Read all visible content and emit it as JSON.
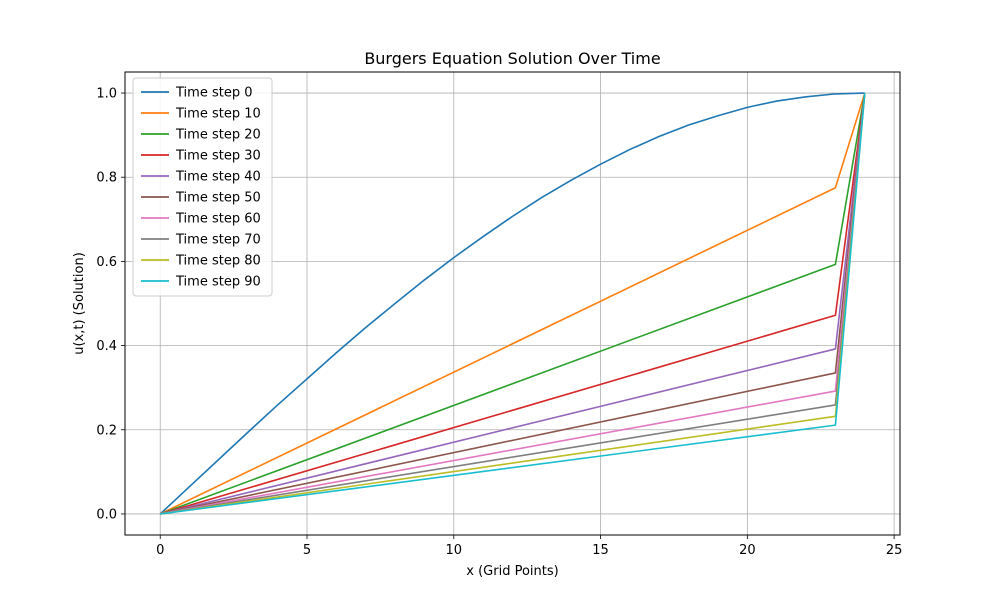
{
  "chart_data": {
    "type": "line",
    "title": "Burgers Equation Solution Over Time",
    "xlabel": "x (Grid Points)",
    "ylabel": "u(x,t) (Solution)",
    "xlim": [
      -1.2,
      25.2
    ],
    "ylim": [
      -0.05,
      1.05
    ],
    "xticks": [
      0,
      5,
      10,
      15,
      20,
      25
    ],
    "yticks": [
      0.0,
      0.2,
      0.4,
      0.6,
      0.8,
      1.0
    ],
    "xtick_labels": [
      "0",
      "5",
      "10",
      "15",
      "20",
      "25"
    ],
    "ytick_labels": [
      "0.0",
      "0.2",
      "0.4",
      "0.6",
      "0.8",
      "1.0"
    ],
    "grid": true,
    "legend_position": "top-left",
    "series": [
      {
        "name": "Time step 0",
        "color": "#1f77b4",
        "x": [
          0,
          1,
          2,
          3,
          4,
          5,
          6,
          7,
          8,
          9,
          10,
          11,
          12,
          13,
          14,
          15,
          16,
          17,
          18,
          19,
          20,
          21,
          22,
          23,
          24
        ],
        "y": [
          0.0,
          0.065,
          0.13,
          0.195,
          0.259,
          0.321,
          0.383,
          0.443,
          0.5,
          0.556,
          0.609,
          0.659,
          0.707,
          0.752,
          0.793,
          0.831,
          0.866,
          0.897,
          0.924,
          0.946,
          0.966,
          0.981,
          0.991,
          0.998,
          1.0
        ]
      },
      {
        "name": "Time step 10",
        "color": "#ff7f0e",
        "x": [
          0,
          23,
          24
        ],
        "y": [
          0.0,
          0.775,
          1.0
        ]
      },
      {
        "name": "Time step 20",
        "color": "#2ca02c",
        "x": [
          0,
          23,
          24
        ],
        "y": [
          0.0,
          0.593,
          1.0
        ]
      },
      {
        "name": "Time step 30",
        "color": "#d62728",
        "x": [
          0,
          23,
          24
        ],
        "y": [
          0.0,
          0.472,
          1.0
        ]
      },
      {
        "name": "Time step 40",
        "color": "#9467bd",
        "x": [
          0,
          23,
          24
        ],
        "y": [
          0.0,
          0.392,
          1.0
        ]
      },
      {
        "name": "Time step 50",
        "color": "#8c564b",
        "x": [
          0,
          23,
          24
        ],
        "y": [
          0.0,
          0.335,
          1.0
        ]
      },
      {
        "name": "Time step 60",
        "color": "#e377c2",
        "x": [
          0,
          23,
          24
        ],
        "y": [
          0.0,
          0.292,
          1.0
        ]
      },
      {
        "name": "Time step 70",
        "color": "#7f7f7f",
        "x": [
          0,
          23,
          24
        ],
        "y": [
          0.0,
          0.259,
          1.0
        ]
      },
      {
        "name": "Time step 80",
        "color": "#bcbd22",
        "x": [
          0,
          23,
          24
        ],
        "y": [
          0.0,
          0.232,
          1.0
        ]
      },
      {
        "name": "Time step 90",
        "color": "#17becf",
        "x": [
          0,
          23,
          24
        ],
        "y": [
          0.0,
          0.211,
          1.0
        ]
      }
    ]
  }
}
